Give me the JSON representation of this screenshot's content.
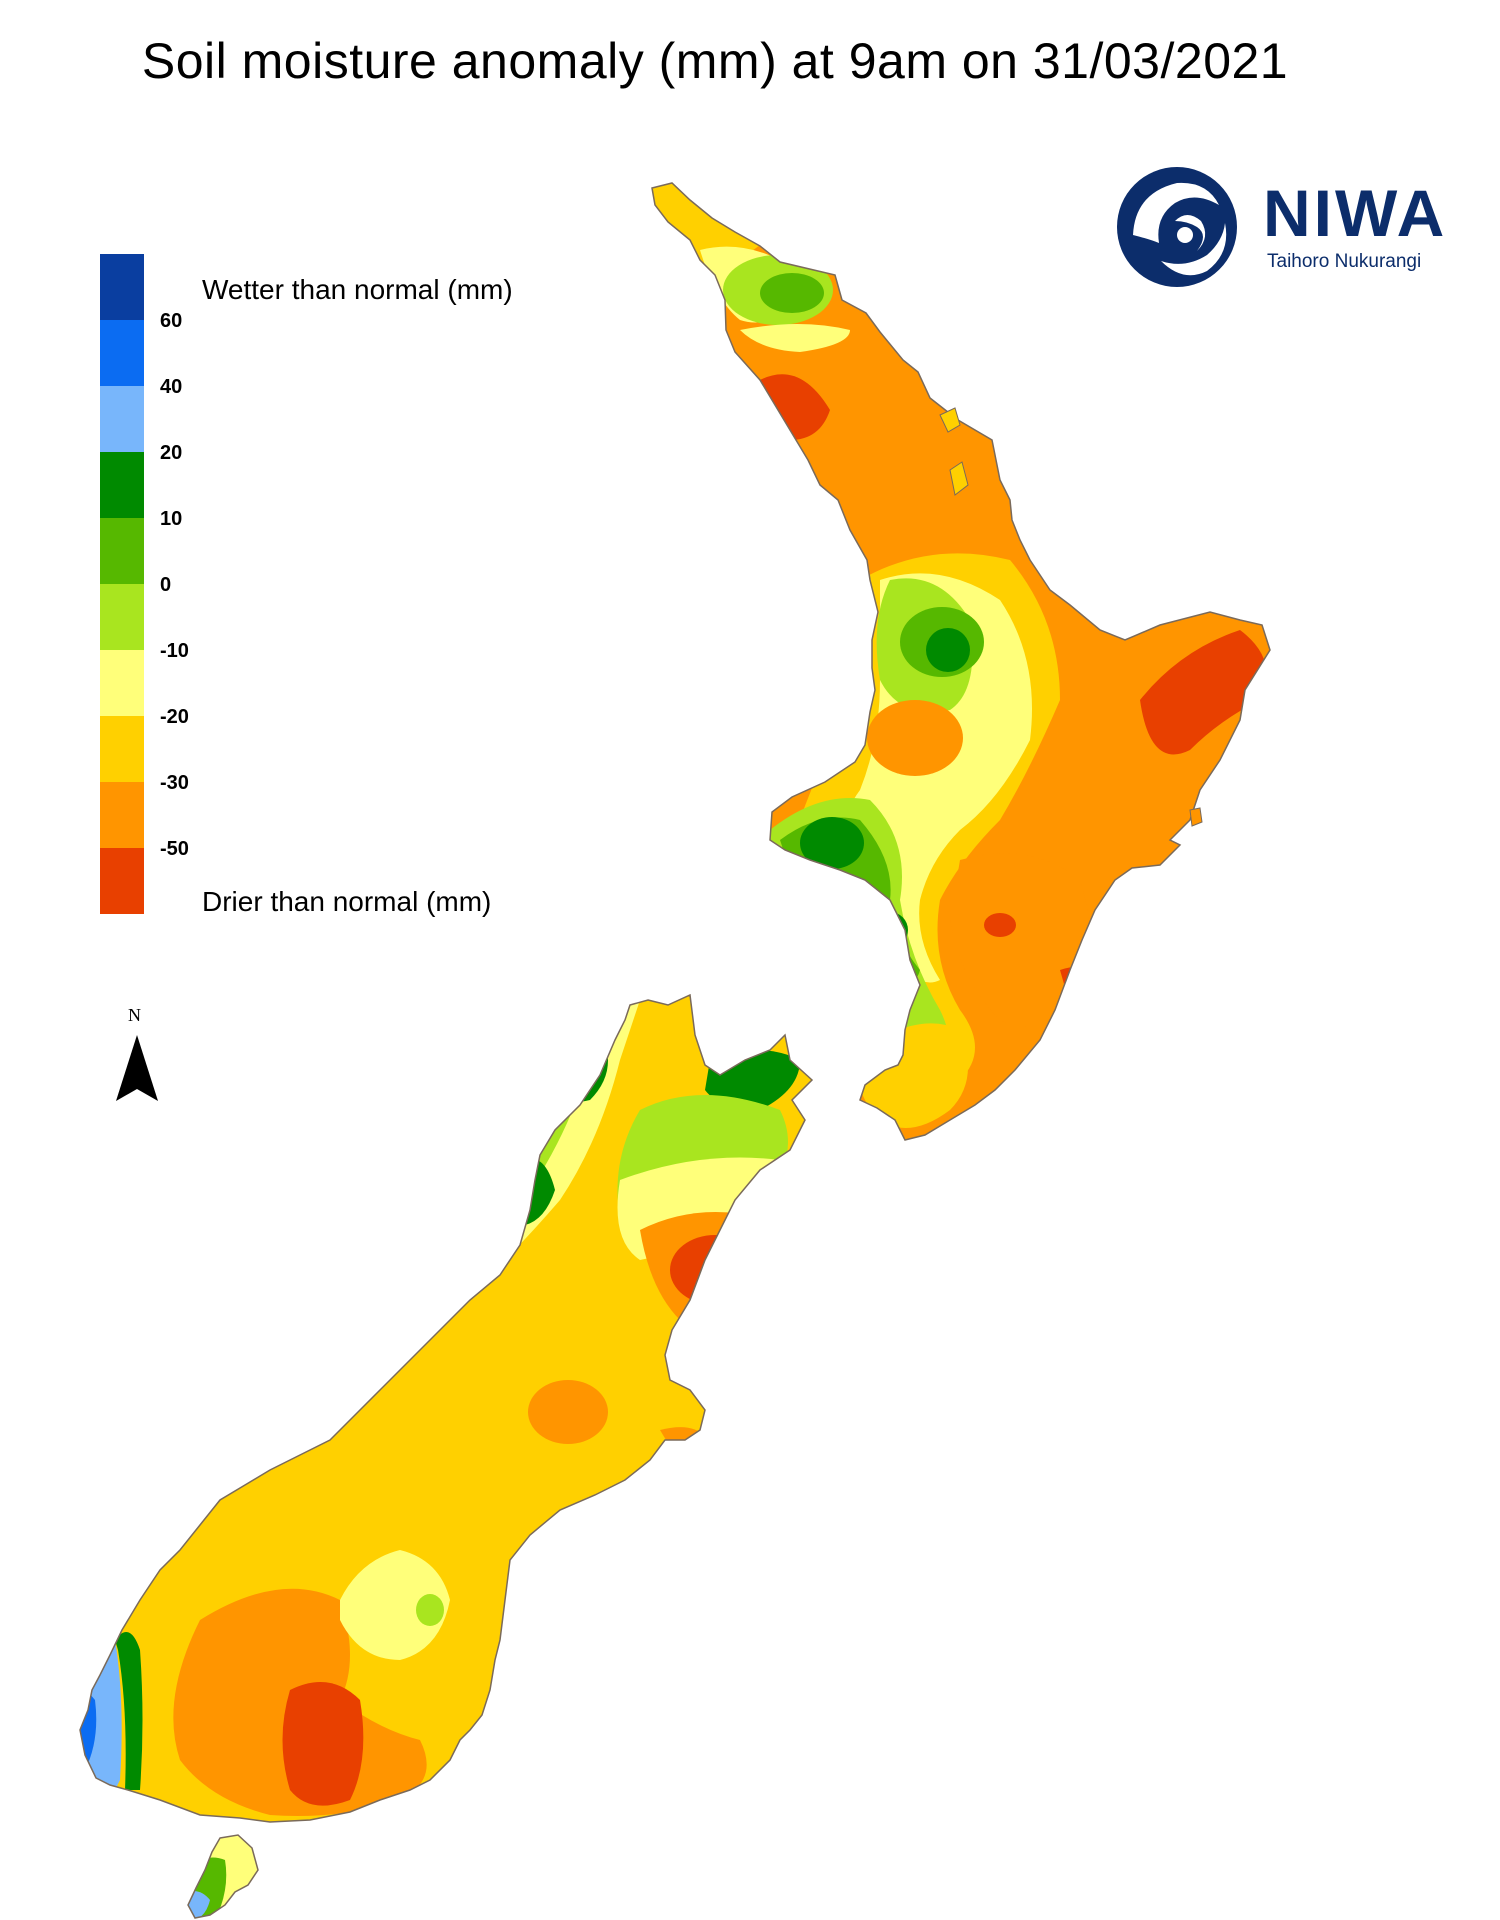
{
  "title": "Soil moisture anomaly (mm) at 9am on 31/03/2021",
  "legend": {
    "wetter_label": "Wetter than normal (mm)",
    "drier_label": "Drier than normal (mm)",
    "ticks": [
      "60",
      "40",
      "20",
      "10",
      "0",
      "-10",
      "-20",
      "-30",
      "-50"
    ],
    "colors": [
      "#0a3ea0",
      "#0b6cf2",
      "#78b6fb",
      "#008a00",
      "#56b800",
      "#a9e51f",
      "#ffff7a",
      "#ffd000",
      "#ff9500",
      "#e84000"
    ]
  },
  "north_arrow": {
    "label": "N",
    "icon": "north-arrow-icon"
  },
  "logo": {
    "name": "NIWA",
    "subtitle": "Taihoro Nukurangi",
    "color": "#0c2d6b"
  },
  "palette": {
    "coast": "#7a6a5a",
    "very_dry": "#e84000",
    "dry": "#ff9500",
    "moderately_dry": "#ffd000",
    "slightly_dry": "#ffff7a",
    "near_normal_dry": "#a9e51f",
    "near_normal_wet": "#56b800",
    "wet": "#008a00",
    "wetter": "#78b6fb",
    "much_wetter": "#0b6cf2"
  }
}
